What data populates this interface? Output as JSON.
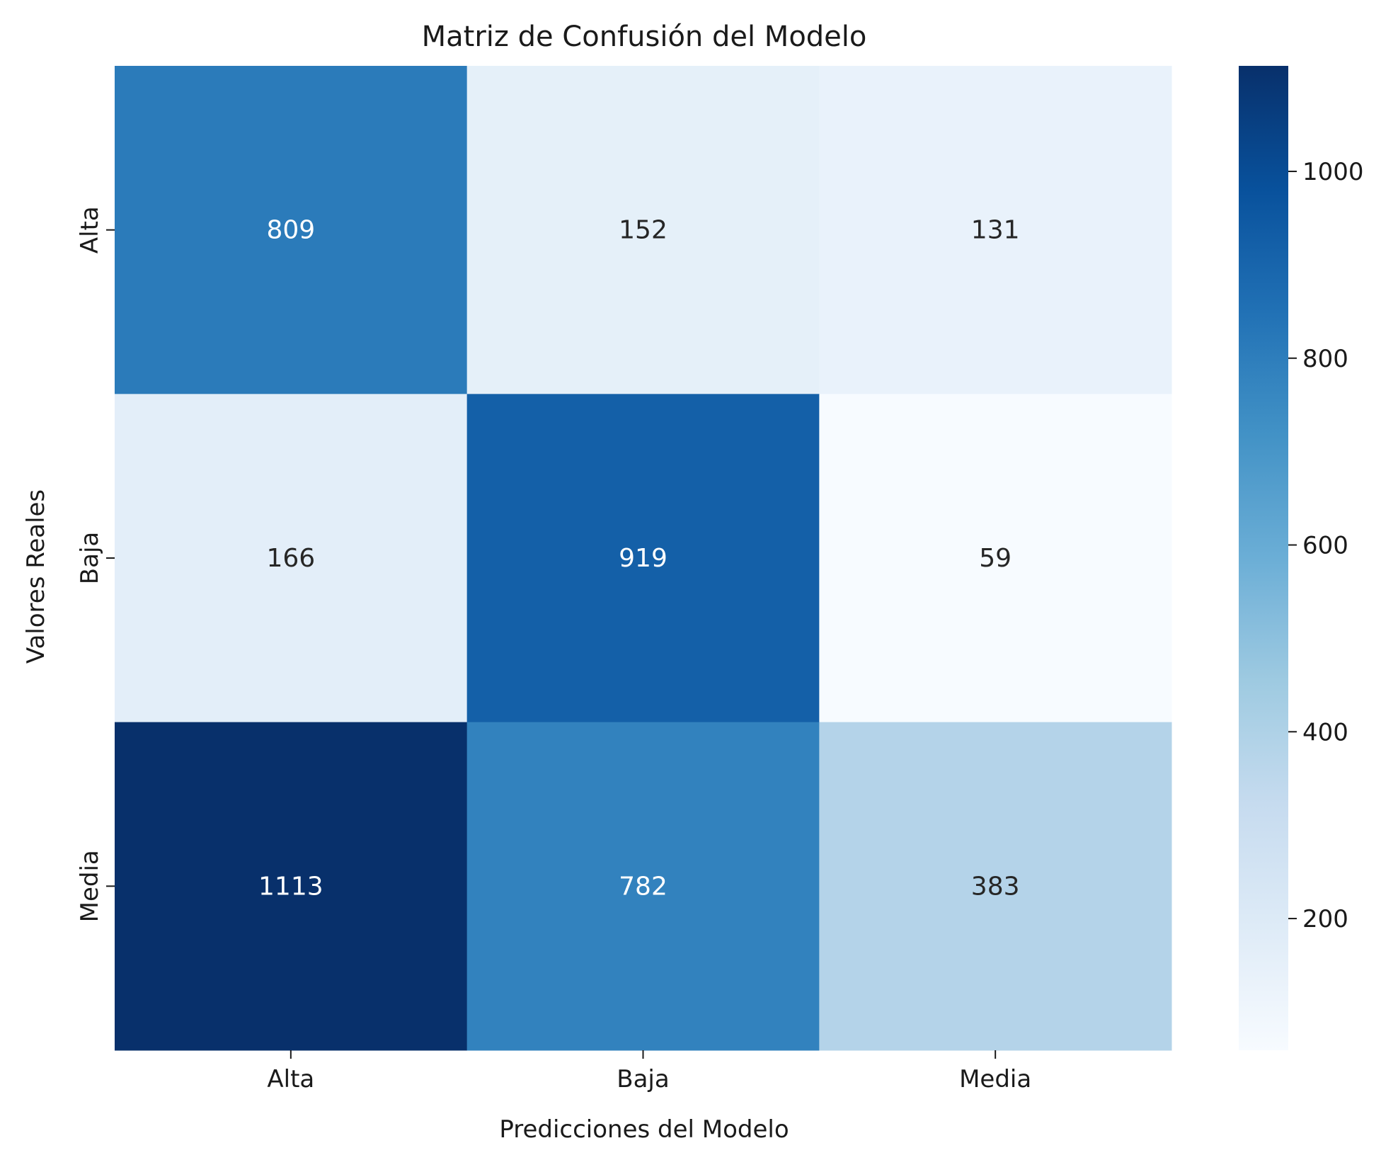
{
  "chart_data": {
    "type": "heatmap",
    "title": "Matriz de Confusión del Modelo",
    "xlabel": "Predicciones del Modelo",
    "ylabel": "Valores Reales",
    "x_categories": [
      "Alta",
      "Baja",
      "Media"
    ],
    "y_categories": [
      "Alta",
      "Baja",
      "Media"
    ],
    "values": [
      [
        809,
        152,
        131
      ],
      [
        166,
        919,
        59
      ],
      [
        1113,
        782,
        383
      ]
    ],
    "colormap": "Blues",
    "color_range": [
      59,
      1113
    ],
    "colorbar_ticks": [
      200,
      400,
      600,
      800,
      1000
    ],
    "grid": false
  }
}
